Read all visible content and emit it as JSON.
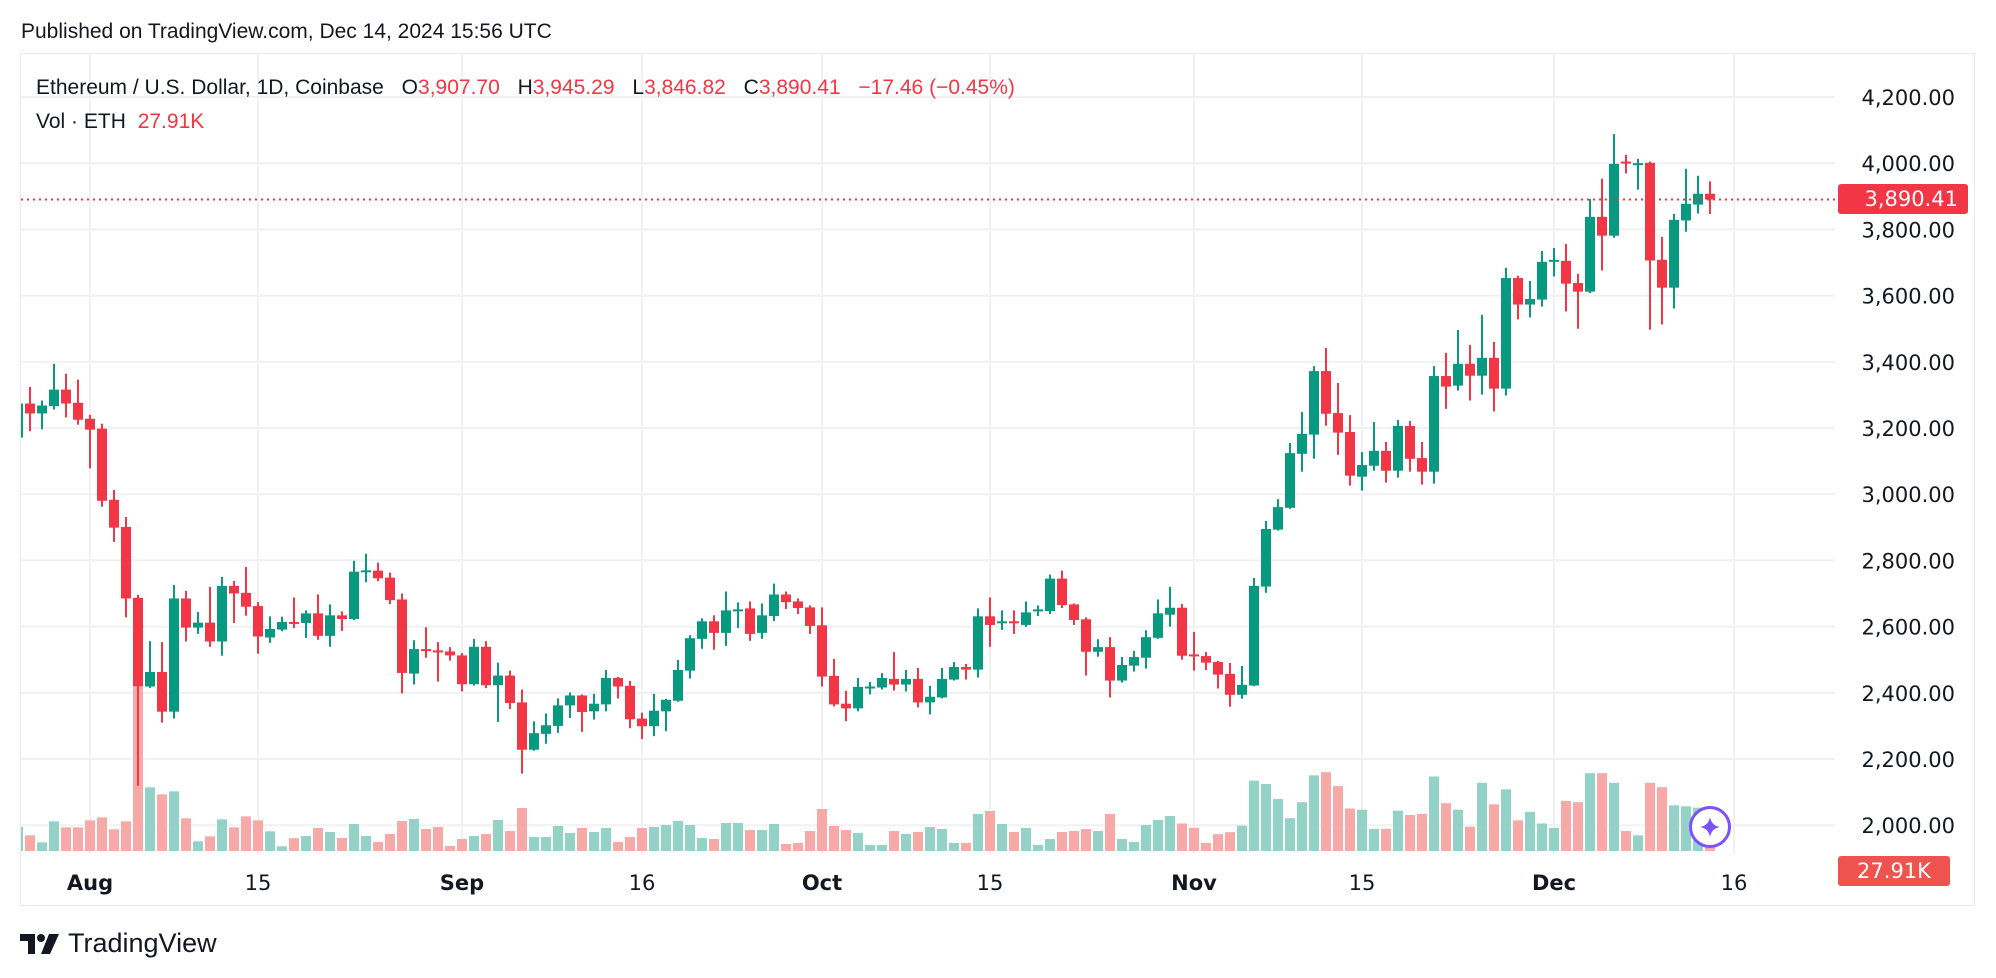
{
  "header": {
    "published": "Published on TradingView.com, Dec 14, 2024 15:56 UTC"
  },
  "legend": {
    "symbol": "Ethereum / U.S. Dollar, 1D, Coinbase",
    "o_label": "O",
    "o_value": "3,907.70",
    "h_label": "H",
    "h_value": "3,945.29",
    "l_label": "L",
    "l_value": "3,846.82",
    "c_label": "C",
    "c_value": "3,890.41",
    "change": "−17.46 (−0.45%)",
    "vol_label": "Vol · ETH",
    "vol_value": "27.91K"
  },
  "price_tag": "3,890.41",
  "volume_tag": "27.91K",
  "footer": {
    "logo_text": "TradingView"
  },
  "icons": {
    "assistant": "sparkle-icon",
    "logo": "tradingview-logo-icon"
  },
  "colors": {
    "up": "#089981",
    "down": "#f23645",
    "up_volume": "#92d2c7",
    "down_volume": "#f7a9a7",
    "last_price_line": "#f23645",
    "assistant": "#7b52ff"
  },
  "chart_data": {
    "type": "candlestick",
    "title": "Ethereum / U.S. Dollar, 1D, Coinbase",
    "ylim": [
      2000,
      4400
    ],
    "grid": true,
    "last_price": 3890.41,
    "y_ticks": [
      {
        "value": 4200,
        "label": "4,200.00"
      },
      {
        "value": 4000,
        "label": "4,000.00"
      },
      {
        "value": 3800,
        "label": "3,800.00"
      },
      {
        "value": 3600,
        "label": "3,600.00"
      },
      {
        "value": 3400,
        "label": "3,400.00"
      },
      {
        "value": 3200,
        "label": "3,200.00"
      },
      {
        "value": 3000,
        "label": "3,000.00"
      },
      {
        "value": 2800,
        "label": "2,800.00"
      },
      {
        "value": 2600,
        "label": "2,600.00"
      },
      {
        "value": 2400,
        "label": "2,400.00"
      },
      {
        "value": 2200,
        "label": "2,200.00"
      },
      {
        "value": 2000,
        "label": "2,000.00"
      }
    ],
    "x_ticks": [
      {
        "date": "2024-08-01",
        "label": "Aug",
        "bold": true
      },
      {
        "date": "2024-08-15",
        "label": "15",
        "bold": false
      },
      {
        "date": "2024-09-01",
        "label": "Sep",
        "bold": true
      },
      {
        "date": "2024-09-16",
        "label": "16",
        "bold": false
      },
      {
        "date": "2024-10-01",
        "label": "Oct",
        "bold": true
      },
      {
        "date": "2024-10-15",
        "label": "15",
        "bold": false
      },
      {
        "date": "2024-11-01",
        "label": "Nov",
        "bold": true
      },
      {
        "date": "2024-11-15",
        "label": "15",
        "bold": false
      },
      {
        "date": "2024-12-01",
        "label": "Dec",
        "bold": true
      },
      {
        "date": "2024-12-16",
        "label": "16",
        "bold": false
      }
    ],
    "columns": [
      "date",
      "open",
      "high",
      "low",
      "close",
      "volume_k"
    ],
    "rows": [
      [
        "2024-07-26",
        3171,
        3290,
        3165,
        3274,
        144
      ],
      [
        "2024-07-27",
        3274,
        3324,
        3190,
        3244,
        94
      ],
      [
        "2024-07-28",
        3244,
        3283,
        3196,
        3268,
        52
      ],
      [
        "2024-07-29",
        3266,
        3394,
        3256,
        3316,
        178
      ],
      [
        "2024-07-30",
        3316,
        3364,
        3232,
        3274,
        142
      ],
      [
        "2024-07-31",
        3276,
        3346,
        3210,
        3225,
        142
      ],
      [
        "2024-08-01",
        3228,
        3240,
        3078,
        3195,
        184
      ],
      [
        "2024-08-02",
        3198,
        3213,
        2962,
        2980,
        202
      ],
      [
        "2024-08-03",
        2983,
        3013,
        2856,
        2899,
        130
      ],
      [
        "2024-08-04",
        2901,
        2931,
        2628,
        2685,
        178
      ],
      [
        "2024-08-05",
        2687,
        2696,
        2119,
        2419,
        984
      ],
      [
        "2024-08-06",
        2419,
        2556,
        2415,
        2463,
        382
      ],
      [
        "2024-08-07",
        2463,
        2553,
        2310,
        2343,
        340
      ],
      [
        "2024-08-08",
        2343,
        2726,
        2322,
        2685,
        358
      ],
      [
        "2024-08-09",
        2685,
        2708,
        2555,
        2597,
        196
      ],
      [
        "2024-08-10",
        2597,
        2644,
        2578,
        2612,
        58
      ],
      [
        "2024-08-11",
        2612,
        2720,
        2539,
        2555,
        88
      ],
      [
        "2024-08-12",
        2555,
        2750,
        2512,
        2723,
        190
      ],
      [
        "2024-08-13",
        2723,
        2738,
        2611,
        2700,
        142
      ],
      [
        "2024-08-14",
        2702,
        2780,
        2633,
        2660,
        208
      ],
      [
        "2024-08-15",
        2662,
        2674,
        2518,
        2570,
        184
      ],
      [
        "2024-08-16",
        2567,
        2631,
        2551,
        2593,
        118
      ],
      [
        "2024-08-17",
        2591,
        2630,
        2586,
        2614,
        28
      ],
      [
        "2024-08-18",
        2614,
        2688,
        2596,
        2611,
        77
      ],
      [
        "2024-08-19",
        2611,
        2649,
        2566,
        2640,
        90
      ],
      [
        "2024-08-20",
        2640,
        2697,
        2560,
        2572,
        138
      ],
      [
        "2024-08-21",
        2572,
        2667,
        2539,
        2634,
        114
      ],
      [
        "2024-08-22",
        2634,
        2646,
        2587,
        2623,
        78
      ],
      [
        "2024-08-23",
        2623,
        2799,
        2620,
        2766,
        162
      ],
      [
        "2024-08-24",
        2766,
        2820,
        2734,
        2770,
        90
      ],
      [
        "2024-08-25",
        2769,
        2793,
        2737,
        2746,
        54
      ],
      [
        "2024-08-26",
        2748,
        2763,
        2668,
        2680,
        102
      ],
      [
        "2024-08-27",
        2682,
        2700,
        2398,
        2460,
        180
      ],
      [
        "2024-08-28",
        2458,
        2559,
        2425,
        2532,
        192
      ],
      [
        "2024-08-29",
        2532,
        2598,
        2506,
        2528,
        132
      ],
      [
        "2024-08-30",
        2528,
        2553,
        2434,
        2525,
        144
      ],
      [
        "2024-08-31",
        2525,
        2538,
        2497,
        2513,
        30
      ],
      [
        "2024-09-01",
        2513,
        2520,
        2404,
        2426,
        72
      ],
      [
        "2024-09-02",
        2426,
        2563,
        2422,
        2539,
        90
      ],
      [
        "2024-09-03",
        2539,
        2556,
        2414,
        2423,
        102
      ],
      [
        "2024-09-04",
        2423,
        2491,
        2312,
        2452,
        186
      ],
      [
        "2024-09-05",
        2452,
        2467,
        2351,
        2369,
        120
      ],
      [
        "2024-09-06",
        2371,
        2410,
        2156,
        2228,
        258
      ],
      [
        "2024-09-07",
        2228,
        2314,
        2225,
        2278,
        84
      ],
      [
        "2024-09-08",
        2276,
        2338,
        2246,
        2302,
        84
      ],
      [
        "2024-09-09",
        2300,
        2383,
        2279,
        2362,
        150
      ],
      [
        "2024-09-10",
        2362,
        2401,
        2324,
        2392,
        108
      ],
      [
        "2024-09-11",
        2392,
        2395,
        2282,
        2342,
        138
      ],
      [
        "2024-09-12",
        2344,
        2397,
        2319,
        2367,
        114
      ],
      [
        "2024-09-13",
        2365,
        2469,
        2344,
        2445,
        138
      ],
      [
        "2024-09-14",
        2445,
        2448,
        2383,
        2419,
        54
      ],
      [
        "2024-09-15",
        2421,
        2436,
        2293,
        2320,
        84
      ],
      [
        "2024-09-16",
        2322,
        2340,
        2260,
        2299,
        138
      ],
      [
        "2024-09-17",
        2299,
        2397,
        2269,
        2346,
        144
      ],
      [
        "2024-09-18",
        2344,
        2382,
        2284,
        2379,
        156
      ],
      [
        "2024-09-19",
        2376,
        2499,
        2373,
        2469,
        180
      ],
      [
        "2024-09-20",
        2467,
        2574,
        2443,
        2565,
        156
      ],
      [
        "2024-09-21",
        2563,
        2625,
        2533,
        2616,
        78
      ],
      [
        "2024-09-22",
        2616,
        2634,
        2530,
        2581,
        72
      ],
      [
        "2024-09-23",
        2581,
        2706,
        2542,
        2649,
        168
      ],
      [
        "2024-09-24",
        2648,
        2673,
        2596,
        2652,
        168
      ],
      [
        "2024-09-25",
        2655,
        2676,
        2557,
        2578,
        126
      ],
      [
        "2024-09-26",
        2581,
        2670,
        2563,
        2634,
        126
      ],
      [
        "2024-09-27",
        2632,
        2730,
        2617,
        2697,
        162
      ],
      [
        "2024-09-28",
        2697,
        2706,
        2653,
        2674,
        42
      ],
      [
        "2024-09-29",
        2676,
        2685,
        2638,
        2656,
        48
      ],
      [
        "2024-09-30",
        2658,
        2664,
        2578,
        2602,
        120
      ],
      [
        "2024-10-01",
        2604,
        2658,
        2419,
        2449,
        252
      ],
      [
        "2024-10-02",
        2451,
        2502,
        2359,
        2365,
        150
      ],
      [
        "2024-10-03",
        2367,
        2406,
        2314,
        2353,
        126
      ],
      [
        "2024-10-04",
        2353,
        2445,
        2344,
        2418,
        108
      ],
      [
        "2024-10-05",
        2417,
        2433,
        2395,
        2419,
        36
      ],
      [
        "2024-10-06",
        2416,
        2460,
        2410,
        2445,
        36
      ],
      [
        "2024-10-07",
        2442,
        2523,
        2407,
        2425,
        120
      ],
      [
        "2024-10-08",
        2425,
        2469,
        2404,
        2442,
        102
      ],
      [
        "2024-10-09",
        2442,
        2475,
        2356,
        2371,
        114
      ],
      [
        "2024-10-10",
        2371,
        2421,
        2335,
        2388,
        144
      ],
      [
        "2024-10-11",
        2386,
        2475,
        2383,
        2442,
        132
      ],
      [
        "2024-10-12",
        2440,
        2493,
        2437,
        2478,
        48
      ],
      [
        "2024-10-13",
        2478,
        2487,
        2440,
        2470,
        48
      ],
      [
        "2024-10-14",
        2470,
        2655,
        2446,
        2631,
        222
      ],
      [
        "2024-10-15",
        2631,
        2688,
        2539,
        2605,
        240
      ],
      [
        "2024-10-16",
        2612,
        2649,
        2590,
        2616,
        162
      ],
      [
        "2024-10-17",
        2616,
        2649,
        2578,
        2612,
        114
      ],
      [
        "2024-10-18",
        2605,
        2676,
        2599,
        2643,
        138
      ],
      [
        "2024-10-19",
        2647,
        2664,
        2632,
        2652,
        36
      ],
      [
        "2024-10-20",
        2647,
        2757,
        2638,
        2745,
        72
      ],
      [
        "2024-10-21",
        2745,
        2769,
        2656,
        2665,
        114
      ],
      [
        "2024-10-22",
        2667,
        2670,
        2605,
        2620,
        120
      ],
      [
        "2024-10-23",
        2622,
        2628,
        2452,
        2524,
        132
      ],
      [
        "2024-10-24",
        2524,
        2562,
        2509,
        2538,
        120
      ],
      [
        "2024-10-25",
        2538,
        2568,
        2386,
        2437,
        222
      ],
      [
        "2024-10-26",
        2437,
        2508,
        2431,
        2484,
        72
      ],
      [
        "2024-10-27",
        2482,
        2526,
        2464,
        2508,
        54
      ],
      [
        "2024-10-28",
        2506,
        2589,
        2473,
        2568,
        156
      ],
      [
        "2024-10-29",
        2566,
        2682,
        2563,
        2640,
        186
      ],
      [
        "2024-10-30",
        2636,
        2720,
        2600,
        2657,
        210
      ],
      [
        "2024-10-31",
        2657,
        2668,
        2500,
        2512,
        165
      ],
      [
        "2024-11-01",
        2516,
        2584,
        2467,
        2512,
        139
      ],
      [
        "2024-11-02",
        2511,
        2523,
        2469,
        2491,
        49
      ],
      [
        "2024-11-03",
        2493,
        2496,
        2413,
        2455,
        101
      ],
      [
        "2024-11-04",
        2457,
        2490,
        2358,
        2394,
        113
      ],
      [
        "2024-11-05",
        2394,
        2481,
        2382,
        2424,
        152
      ],
      [
        "2024-11-06",
        2422,
        2747,
        2420,
        2723,
        422
      ],
      [
        "2024-11-07",
        2721,
        2919,
        2702,
        2895,
        402
      ],
      [
        "2024-11-08",
        2893,
        2985,
        2890,
        2961,
        312
      ],
      [
        "2024-11-09",
        2959,
        3155,
        2956,
        3124,
        197
      ],
      [
        "2024-11-10",
        3122,
        3248,
        3068,
        3182,
        293
      ],
      [
        "2024-11-11",
        3180,
        3387,
        3107,
        3372,
        454
      ],
      [
        "2024-11-12",
        3372,
        3442,
        3207,
        3243,
        473
      ],
      [
        "2024-11-13",
        3245,
        3336,
        3119,
        3186,
        389
      ],
      [
        "2024-11-14",
        3188,
        3239,
        3026,
        3056,
        255
      ],
      [
        "2024-11-15",
        3053,
        3127,
        3011,
        3088,
        248
      ],
      [
        "2024-11-16",
        3086,
        3218,
        3071,
        3131,
        133
      ],
      [
        "2024-11-17",
        3131,
        3158,
        3035,
        3071,
        133
      ],
      [
        "2024-11-18",
        3071,
        3224,
        3050,
        3206,
        242
      ],
      [
        "2024-11-19",
        3206,
        3221,
        3068,
        3107,
        216
      ],
      [
        "2024-11-20",
        3109,
        3158,
        3029,
        3068,
        223
      ],
      [
        "2024-11-21",
        3068,
        3387,
        3032,
        3357,
        447
      ],
      [
        "2024-11-22",
        3357,
        3427,
        3258,
        3325,
        287
      ],
      [
        "2024-11-23",
        3328,
        3496,
        3313,
        3394,
        248
      ],
      [
        "2024-11-24",
        3394,
        3451,
        3283,
        3358,
        146
      ],
      [
        "2024-11-25",
        3358,
        3542,
        3301,
        3412,
        409
      ],
      [
        "2024-11-26",
        3412,
        3460,
        3250,
        3319,
        280
      ],
      [
        "2024-11-27",
        3319,
        3684,
        3298,
        3653,
        370
      ],
      [
        "2024-11-28",
        3653,
        3660,
        3528,
        3573,
        184
      ],
      [
        "2024-11-29",
        3573,
        3644,
        3534,
        3590,
        235
      ],
      [
        "2024-11-30",
        3588,
        3735,
        3567,
        3702,
        165
      ],
      [
        "2024-12-01",
        3703,
        3744,
        3658,
        3708,
        139
      ],
      [
        "2024-12-02",
        3705,
        3756,
        3552,
        3636,
        300
      ],
      [
        "2024-12-03",
        3638,
        3666,
        3500,
        3612,
        293
      ],
      [
        "2024-12-04",
        3612,
        3892,
        3608,
        3838,
        467
      ],
      [
        "2024-12-05",
        3838,
        3953,
        3676,
        3781,
        467
      ],
      [
        "2024-12-06",
        3781,
        4088,
        3775,
        3998,
        409
      ],
      [
        "2024-12-07",
        4005,
        4025,
        3969,
        3999,
        120
      ],
      [
        "2024-12-08",
        3995,
        4013,
        3920,
        4000,
        94
      ],
      [
        "2024-12-09",
        4001,
        4005,
        3497,
        3706,
        409
      ],
      [
        "2024-12-10",
        3708,
        3777,
        3513,
        3624,
        383
      ],
      [
        "2024-12-11",
        3624,
        3847,
        3561,
        3829,
        274
      ],
      [
        "2024-12-12",
        3827,
        3983,
        3793,
        3877,
        268
      ],
      [
        "2024-12-13",
        3875,
        3962,
        3848,
        3907.7,
        260
      ],
      [
        "2024-12-14",
        3907.7,
        3945.29,
        3846.82,
        3890.41,
        27.91
      ]
    ]
  }
}
